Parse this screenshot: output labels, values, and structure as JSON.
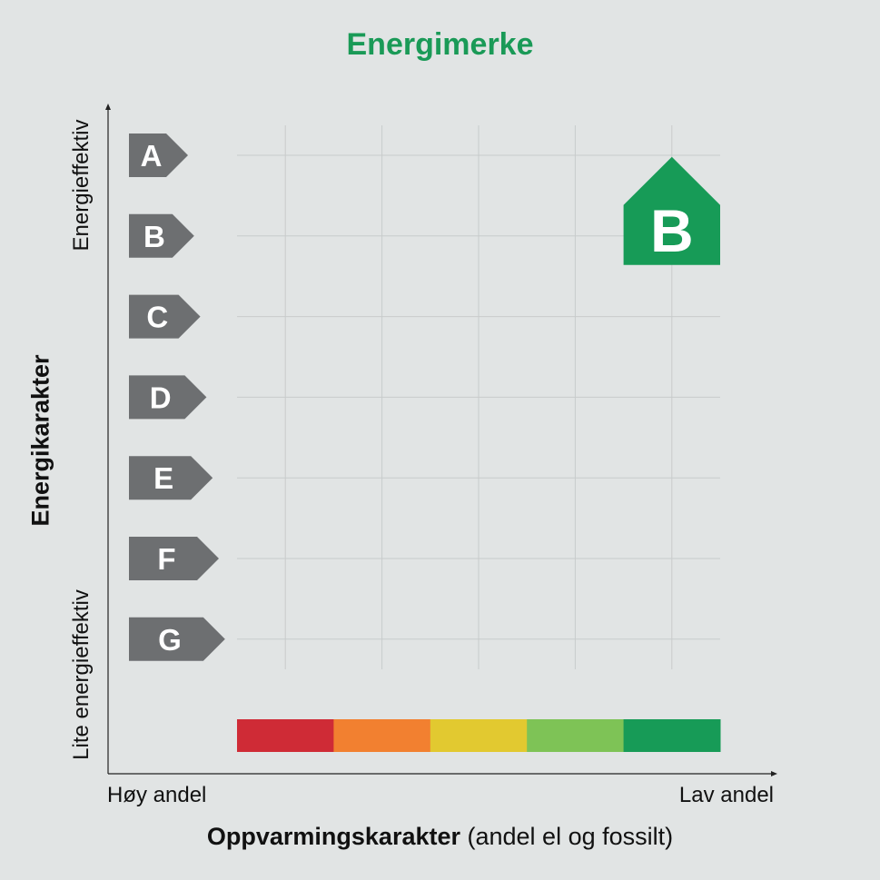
{
  "title": "Energimerke",
  "title_color": "#1a9a57",
  "chart_data": {
    "type": "heatmap",
    "title": "Energimerke",
    "ylabel": "Energikarakter",
    "y_top_label": "Energieffektiv",
    "y_bottom_label": "Lite energieffektiv",
    "xlabel_bold": "Oppvarmingskarakter",
    "xlabel_rest": " (andel el og fossilt)",
    "x_left_label": "Høy andel",
    "x_right_label": "Lav andel",
    "energy_grades": [
      "A",
      "B",
      "C",
      "D",
      "E",
      "F",
      "G"
    ],
    "heating_colors": [
      "#cf2b36",
      "#f28030",
      "#e2c930",
      "#7ec356",
      "#179b57"
    ],
    "grade_color": "#6d6f71",
    "grid": true,
    "result": {
      "energy_grade": "B",
      "heating_column": 5,
      "color": "#179b57"
    }
  }
}
